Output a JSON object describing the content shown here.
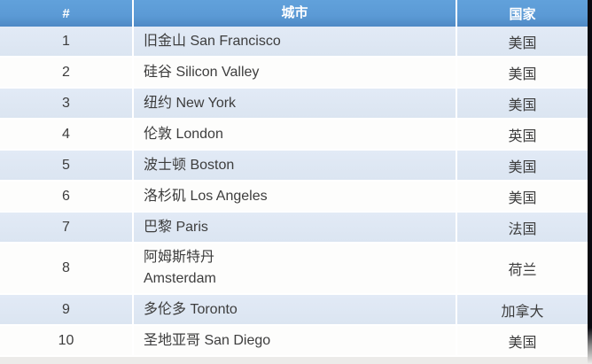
{
  "chart_data": {
    "type": "table",
    "columns": [
      "#",
      "城市",
      "国家"
    ],
    "rows": [
      [
        "1",
        "旧金山 San Francisco",
        "美国"
      ],
      [
        "2",
        "硅谷 Silicon Valley",
        "美国"
      ],
      [
        "3",
        "纽约 New York",
        "美国"
      ],
      [
        "4",
        "伦敦 London",
        "英国"
      ],
      [
        "5",
        "波士顿 Boston",
        "美国"
      ],
      [
        "6",
        "洛杉矶 Los Angeles",
        "美国"
      ],
      [
        "7",
        "巴黎 Paris",
        "法国"
      ],
      [
        "8",
        "阿姆斯特丹\nAmsterdam",
        "荷兰"
      ],
      [
        "9",
        "多伦多 Toronto",
        "加拿大"
      ],
      [
        "10",
        "圣地亚哥 San Diego",
        "美国"
      ]
    ],
    "layout": {
      "striped": true,
      "stripe_pattern": "odd-rows-blue",
      "header_position": "top",
      "rank_align": "center",
      "city_align": "left",
      "country_align": "center"
    }
  },
  "colors": {
    "header_bg": "#5B9AD5",
    "header_text": "#FFFFFF",
    "row_blue": "#DBE5F1",
    "row_white": "#FDFDFC",
    "text": "#3D3D3D",
    "separator": "#FFFFFF",
    "bottom_strip": "#ECEBE9",
    "right_bar": "#0A0A10"
  }
}
